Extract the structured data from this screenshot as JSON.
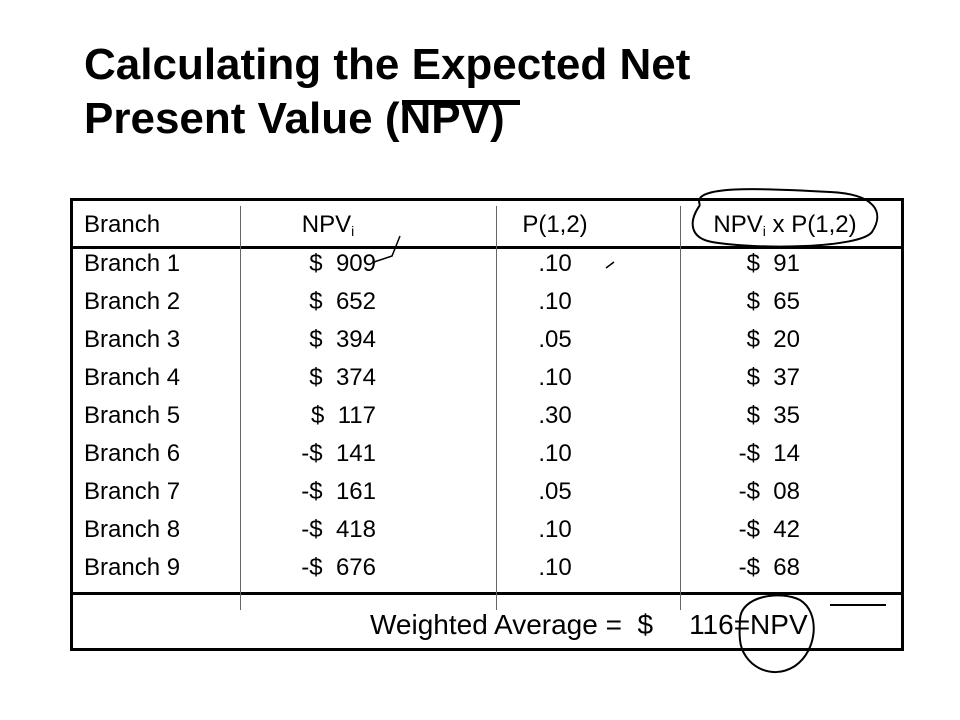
{
  "title": {
    "line1": "Calculating the Expected Net",
    "line2": "Present Value (NPV)"
  },
  "table": {
    "headers": {
      "branch": "Branch",
      "npv_main": "NPV",
      "npv_sub": "i",
      "prob": "P(1,2)",
      "product_main": "NPV",
      "product_sub": "i",
      "product_rest": " x P(1,2)"
    },
    "rows": [
      {
        "branch": "Branch 1",
        "npv": "$  909",
        "prob": ".10",
        "product": "$  91"
      },
      {
        "branch": "Branch 2",
        "npv": "$  652",
        "prob": ".10",
        "product": "$  65"
      },
      {
        "branch": "Branch 3",
        "npv": "$  394",
        "prob": ".05",
        "product": "$  20"
      },
      {
        "branch": "Branch 4",
        "npv": "$  374",
        "prob": ".10",
        "product": "$  37"
      },
      {
        "branch": "Branch 5",
        "npv": "$  117",
        "prob": ".30",
        "product": "$  35"
      },
      {
        "branch": "Branch 6",
        "npv": "-$  141",
        "prob": ".10",
        "product": "-$  14"
      },
      {
        "branch": "Branch 7",
        "npv": "-$  161",
        "prob": ".05",
        "product": "-$  08"
      },
      {
        "branch": "Branch 8",
        "npv": "-$  418",
        "prob": ".10",
        "product": "-$  42"
      },
      {
        "branch": "Branch 9",
        "npv": "-$  676",
        "prob": ".10",
        "product": "-$  68"
      }
    ],
    "footer": {
      "label": "Weighted Average =  $",
      "amount": "116",
      "suffix": "=NPV"
    }
  }
}
